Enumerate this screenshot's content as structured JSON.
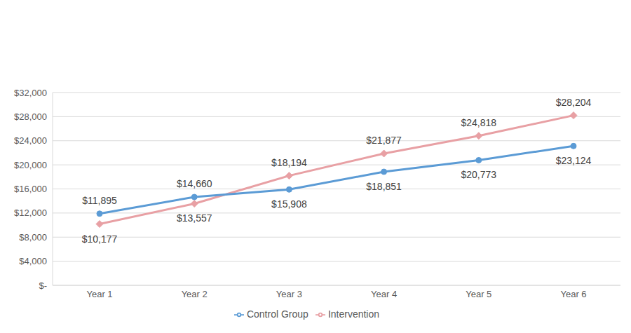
{
  "chart_data": {
    "type": "line",
    "categories": [
      "Year 1",
      "Year 2",
      "Year 3",
      "Year 4",
      "Year 5",
      "Year 6"
    ],
    "series": [
      {
        "name": "Intervention",
        "color": "#e8a0a4",
        "marker": "diamond",
        "line_style": "solid",
        "values": [
          10177,
          13557,
          18194,
          21877,
          24818,
          28204
        ],
        "value_labels": [
          "$10,177",
          "$13,557",
          "$18,194",
          "$21,877",
          "$24,818",
          "$28,204"
        ]
      },
      {
        "name": "Control Group",
        "color": "#5b9bd5",
        "marker": "circle",
        "line_style": "solid",
        "values": [
          11895,
          14660,
          15908,
          18851,
          20773,
          23124
        ],
        "value_labels": [
          "$11,895",
          "$14,660",
          "$15,908",
          "$18,851",
          "$20,773",
          "$23,124"
        ]
      }
    ],
    "ylim": [
      0,
      32000
    ],
    "yticks": [
      {
        "value": 0,
        "label": "$-"
      },
      {
        "value": 4000,
        "label": "$4,000"
      },
      {
        "value": 8000,
        "label": "$8,000"
      },
      {
        "value": 12000,
        "label": "$12,000"
      },
      {
        "value": 16000,
        "label": "$16,000"
      },
      {
        "value": 20000,
        "label": "$20,000"
      },
      {
        "value": 24000,
        "label": "$24,000"
      },
      {
        "value": 28000,
        "label": "$28,000"
      },
      {
        "value": 32000,
        "label": "$32,000"
      }
    ],
    "grid": true,
    "legend": "bottom",
    "data_labels": true
  }
}
